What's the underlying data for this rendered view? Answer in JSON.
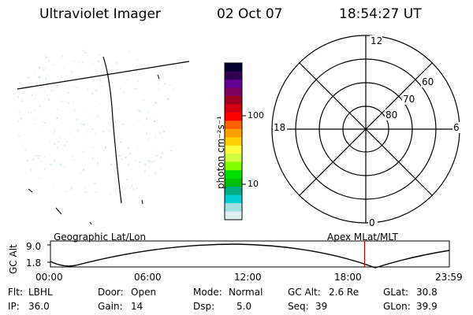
{
  "header": {
    "instrument": "Ultraviolet Imager",
    "date": "02 Oct 07",
    "time": "18:54:27 UT"
  },
  "colorbar": {
    "unit_label": "photon cm⁻²s⁻¹",
    "tick_100": "100",
    "tick_10": "10",
    "colors": [
      "#000033",
      "#300050",
      "#600090",
      "#800060",
      "#a00020",
      "#d00010",
      "#ff0000",
      "#ff6000",
      "#ffa000",
      "#ffd000",
      "#ffff40",
      "#d0ff40",
      "#80ff00",
      "#00e000",
      "#00c000",
      "#00b080",
      "#00d0d0",
      "#a0e0e0",
      "#e0f0f0"
    ]
  },
  "polar_plot": {
    "mlt_labels": {
      "top": "12",
      "bottom": "0",
      "left": "18",
      "right": "6"
    },
    "lat_labels": [
      "60",
      "70",
      "80"
    ]
  },
  "timeline": {
    "left_label": "Geographic Lat/Lon",
    "right_label": "Apex MLat/MLT",
    "y_axis_label": "GC Alt",
    "y_ticks": [
      "9.0",
      "1.8"
    ],
    "x_ticks": [
      "00:00",
      "06:00",
      "12:00",
      "18:00",
      "23:59"
    ],
    "current_time_hours": 18.9
  },
  "status": {
    "flt_label": "Flt:",
    "flt_value": "LBHL",
    "ip_label": "IP:",
    "ip_value": "36.0",
    "door_label": "Door:",
    "door_value": "Open",
    "gain_label": "Gain:",
    "gain_value": "14",
    "mode_label": "Mode:",
    "mode_value": "Normal",
    "dsp_label": "Dsp:",
    "dsp_value": "5.0",
    "gcalt_label": "GC Alt:",
    "gcalt_value": "2.6 Re",
    "seq_label": "Seq:",
    "seq_value": "39",
    "glat_label": "GLat:",
    "glat_value": "30.8",
    "glon_label": "GLon:",
    "glon_value": "39.9"
  }
}
